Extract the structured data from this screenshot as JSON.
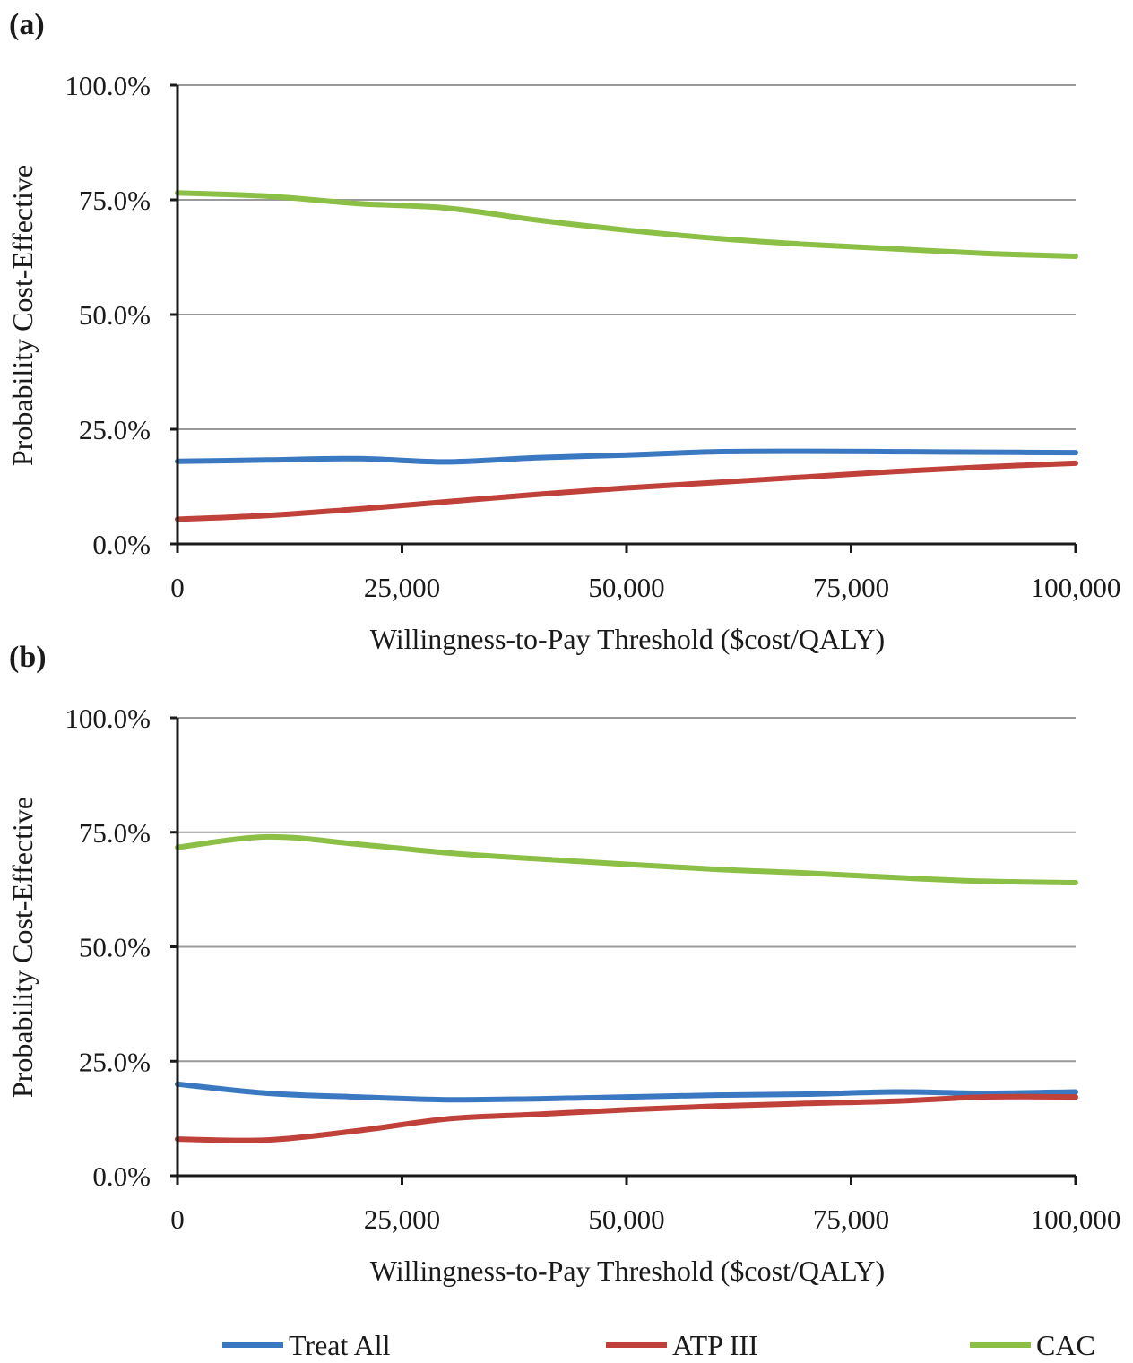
{
  "chart_data": [
    {
      "type": "line",
      "panel_label": "(a)",
      "xlabel": "Willingness-to-Pay Threshold ($cost/QALY)",
      "ylabel": "Probability Cost-Effective",
      "xlim": [
        0,
        100000
      ],
      "ylim": [
        0,
        100
      ],
      "x_ticks": [
        0,
        25000,
        50000,
        75000,
        100000
      ],
      "x_tick_labels": [
        "0",
        "25,000",
        "50,000",
        "75,000",
        "100,000"
      ],
      "y_ticks": [
        0,
        25,
        50,
        75,
        100
      ],
      "y_tick_labels": [
        "0.0%",
        "25.0%",
        "50.0%",
        "75.0%",
        "100.0%"
      ],
      "grid": true,
      "x": [
        0,
        10000,
        20000,
        30000,
        40000,
        50000,
        60000,
        70000,
        80000,
        90000,
        100000
      ],
      "series": [
        {
          "name": "Treat All",
          "values": [
            18.0,
            18.3,
            18.6,
            17.9,
            18.8,
            19.4,
            20.1,
            20.2,
            20.1,
            20.0,
            19.9
          ]
        },
        {
          "name": "ATP III",
          "values": [
            5.4,
            6.2,
            7.6,
            9.2,
            10.8,
            12.2,
            13.4,
            14.6,
            15.8,
            16.8,
            17.6
          ]
        },
        {
          "name": "CAC",
          "values": [
            76.5,
            75.8,
            74.2,
            73.2,
            70.6,
            68.4,
            66.6,
            65.3,
            64.3,
            63.3,
            62.7
          ]
        }
      ]
    },
    {
      "type": "line",
      "panel_label": "(b)",
      "xlabel": "Willingness-to-Pay Threshold ($cost/QALY)",
      "ylabel": "Probability Cost-Effective",
      "xlim": [
        0,
        100000
      ],
      "ylim": [
        0,
        100
      ],
      "x_ticks": [
        0,
        25000,
        50000,
        75000,
        100000
      ],
      "x_tick_labels": [
        "0",
        "25,000",
        "50,000",
        "75,000",
        "100,000"
      ],
      "y_ticks": [
        0,
        25,
        50,
        75,
        100
      ],
      "y_tick_labels": [
        "0.0%",
        "25.0%",
        "50.0%",
        "75.0%",
        "100.0%"
      ],
      "grid": true,
      "x": [
        0,
        10000,
        20000,
        30000,
        40000,
        50000,
        60000,
        70000,
        80000,
        90000,
        100000
      ],
      "series": [
        {
          "name": "Treat All",
          "values": [
            20.0,
            18.0,
            17.2,
            16.6,
            16.8,
            17.2,
            17.6,
            17.8,
            18.3,
            18.0,
            18.3
          ]
        },
        {
          "name": "ATP III",
          "values": [
            8.0,
            7.8,
            9.8,
            12.4,
            13.4,
            14.4,
            15.2,
            15.8,
            16.3,
            17.2,
            17.2
          ]
        },
        {
          "name": "CAC",
          "values": [
            71.7,
            74.0,
            72.4,
            70.5,
            69.2,
            68.0,
            66.9,
            66.1,
            65.1,
            64.3,
            64.0
          ]
        }
      ]
    }
  ],
  "legend": {
    "placement": "bottom",
    "items": [
      {
        "label": "Treat All",
        "color": "#3a78c2"
      },
      {
        "label": "ATP III",
        "color": "#c0403a"
      },
      {
        "label": "CAC",
        "color": "#8cbf45"
      }
    ]
  }
}
